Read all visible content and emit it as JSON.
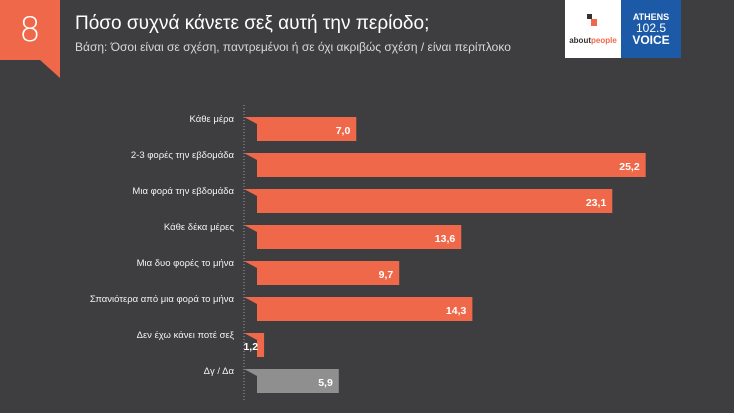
{
  "header": {
    "number": "8",
    "title": "Πόσο συχνά κάνετε σεξ αυτή την περίοδο;",
    "subtitle": "Βάση: Όσοι είναι σε σχέση, παντρεμένοι ή σε όχι ακριβώς σχέση / είναι περίπλοκο"
  },
  "logos": {
    "about": "about",
    "people": "people",
    "athens": "ATHENS",
    "freq": "102.5",
    "voice": "VOICE"
  },
  "colors": {
    "bar": "#f0684a",
    "na_bar": "#8f8f8f",
    "background": "#3e3e40"
  },
  "chart_data": {
    "type": "bar",
    "orientation": "horizontal",
    "categories": [
      "Κάθε μέρα",
      "2-3 φορές την εβδομάδα",
      "Μια φορά την εβδομάδα",
      "Κάθε δέκα μέρες",
      "Μια δυο φορές το μήνα",
      "Σπανιότερα από μια φορά το μήνα",
      "Δεν έχω κάνει ποτέ σεξ",
      "Δγ / Δα"
    ],
    "values": [
      7.0,
      25.2,
      23.1,
      13.6,
      9.7,
      14.3,
      1.2,
      5.9
    ],
    "labels": [
      "7,0",
      "25,2",
      "23,1",
      "13,6",
      "9,7",
      "14,3",
      "1,2",
      "5,9"
    ],
    "grid": false
  }
}
